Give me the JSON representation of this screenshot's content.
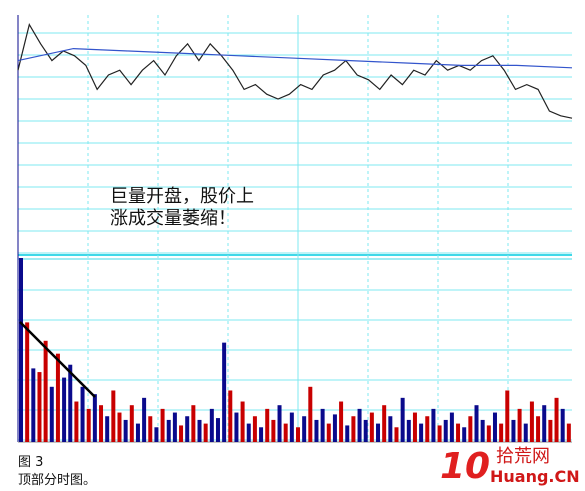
{
  "chart_data": [
    {
      "type": "line",
      "annotation": [
        "巨量开盘，股价上",
        "涨成交量萎缩！"
      ],
      "ylim": [
        0,
        100
      ],
      "series": [
        {
          "color": "#222222",
          "values": [
            77,
            96,
            88,
            81,
            85,
            83,
            79,
            69,
            75,
            77,
            71,
            77,
            81,
            75,
            83,
            88,
            81,
            88,
            83,
            77,
            69,
            71,
            67,
            65,
            67,
            71,
            69,
            75,
            77,
            81,
            75,
            73,
            69,
            75,
            71,
            77,
            75,
            81,
            77,
            79,
            77,
            81,
            83,
            77,
            69,
            71,
            69,
            60,
            58,
            57
          ]
        },
        {
          "color": "#3355cc",
          "values": [
            81,
            86,
            85,
            84,
            83,
            82,
            81,
            80,
            79,
            79,
            78
          ]
        }
      ]
    },
    {
      "type": "bar",
      "ylim": [
        0,
        100
      ],
      "trend_color": "#000000",
      "values": [
        100,
        65,
        40,
        38,
        55,
        30,
        48,
        35,
        42,
        22,
        30,
        18,
        26,
        20,
        14,
        28,
        16,
        12,
        20,
        10,
        24,
        14,
        8,
        18,
        12,
        16,
        9,
        14,
        20,
        12,
        10,
        18,
        13,
        54,
        28,
        16,
        22,
        10,
        14,
        8,
        18,
        12,
        20,
        10,
        16,
        8,
        14,
        30,
        12,
        18,
        10,
        15,
        22,
        9,
        14,
        18,
        12,
        16,
        10,
        20,
        14,
        8,
        24,
        12,
        16,
        10,
        14,
        18,
        9,
        12,
        16,
        10,
        8,
        14,
        20,
        12,
        9,
        16,
        10,
        28,
        12,
        18,
        10,
        22,
        14,
        20,
        12,
        24,
        18,
        10
      ],
      "colors": [
        "#0a0a8c",
        "#c80000",
        "#0a0a8c",
        "#c80000",
        "#c80000",
        "#0a0a8c",
        "#c80000",
        "#0a0a8c",
        "#0a0a8c",
        "#c80000",
        "#0a0a8c",
        "#c80000",
        "#0a0a8c",
        "#c80000",
        "#0a0a8c",
        "#c80000",
        "#c80000",
        "#0a0a8c",
        "#c80000",
        "#0a0a8c",
        "#0a0a8c",
        "#c80000",
        "#0a0a8c",
        "#c80000",
        "#0a0a8c",
        "#0a0a8c",
        "#c80000",
        "#0a0a8c",
        "#c80000",
        "#0a0a8c",
        "#c80000",
        "#0a0a8c",
        "#0a0a8c",
        "#0a0a8c",
        "#c80000",
        "#0a0a8c",
        "#c80000",
        "#0a0a8c",
        "#c80000",
        "#0a0a8c",
        "#c80000",
        "#c80000",
        "#0a0a8c",
        "#c80000",
        "#0a0a8c",
        "#c80000",
        "#0a0a8c",
        "#c80000",
        "#0a0a8c",
        "#0a0a8c",
        "#c80000",
        "#0a0a8c",
        "#c80000",
        "#0a0a8c",
        "#c80000",
        "#0a0a8c",
        "#0a0a8c",
        "#c80000",
        "#0a0a8c",
        "#c80000",
        "#0a0a8c",
        "#c80000",
        "#0a0a8c",
        "#0a0a8c",
        "#c80000",
        "#0a0a8c",
        "#c80000",
        "#0a0a8c",
        "#c80000",
        "#0a0a8c",
        "#0a0a8c",
        "#c80000",
        "#0a0a8c",
        "#c80000",
        "#0a0a8c",
        "#0a0a8c",
        "#c80000",
        "#0a0a8c",
        "#c80000",
        "#c80000",
        "#0a0a8c",
        "#c80000",
        "#0a0a8c",
        "#c80000",
        "#c80000",
        "#0a0a8c",
        "#c80000",
        "#c80000",
        "#0a0a8c",
        "#c80000"
      ]
    }
  ],
  "caption": [
    "图 3",
    "顶部分时图。"
  ],
  "watermark": {
    "logo": "10",
    "name": "拾荒网",
    "site": "Huang.CN"
  }
}
